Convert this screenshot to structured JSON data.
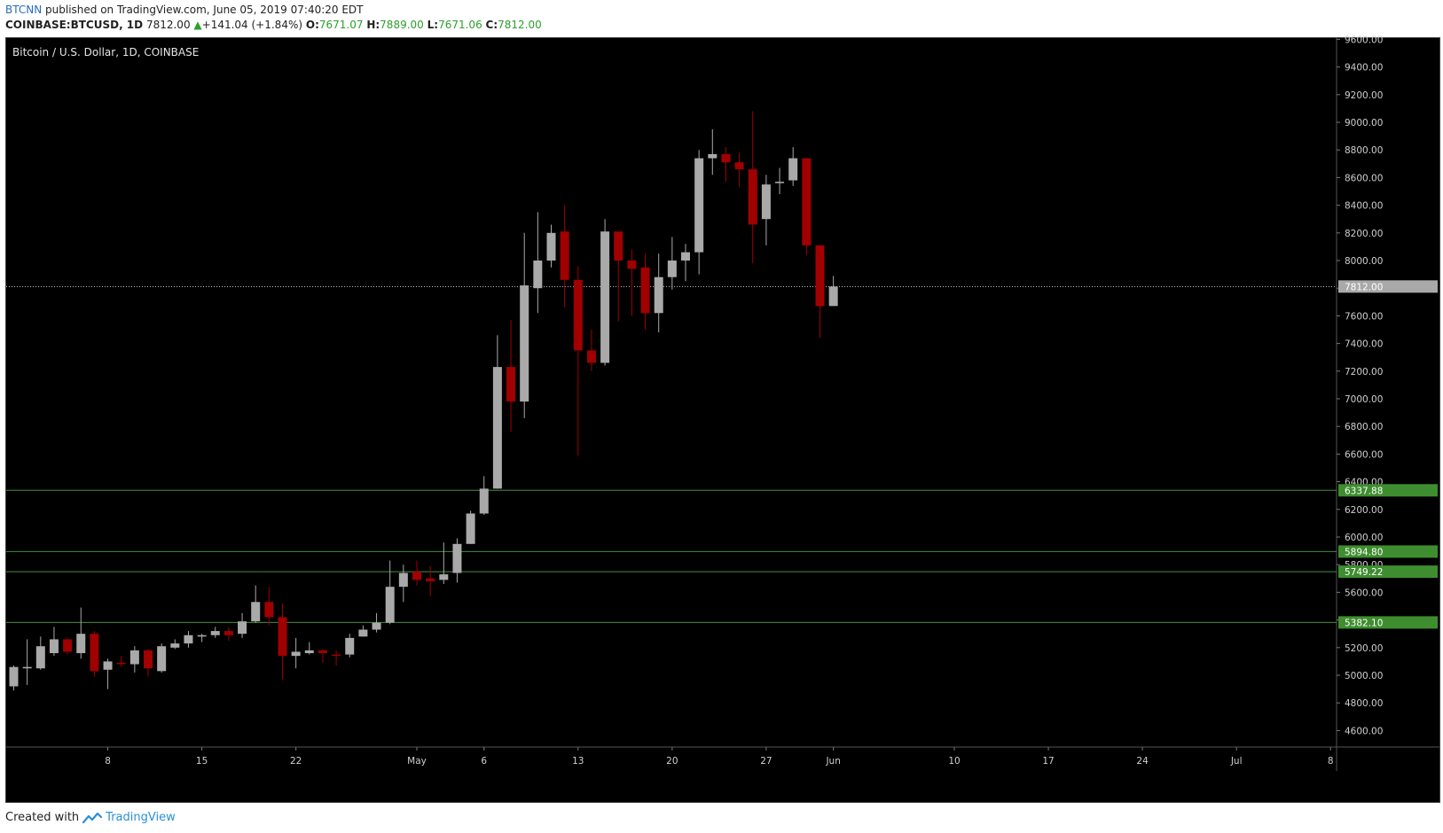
{
  "header": {
    "author": "BTCNN",
    "published_text": " published on TradingView.com, June 05, 2019 07:40:20 EDT",
    "symbol": "COINBASE:BTCUSD, 1D",
    "last": "7812.00",
    "change_arrow": "▲",
    "change": "+141.04 (+1.84%)",
    "o_label": "O:",
    "o": "7671.07",
    "h_label": "H:",
    "h": "7889.00",
    "l_label": "L:",
    "l": "7671.06",
    "c_label": "C:",
    "c": "7812.00"
  },
  "footer": {
    "created_with": "Created with",
    "brand": "TradingView"
  },
  "colors": {
    "up": "#a9a9a9",
    "down": "#a10000",
    "background": "#000000",
    "support_line": "#3f8f3f",
    "support_label": "#3e8e2f"
  },
  "chart_data": {
    "type": "candlestick",
    "title": "Bitcoin / U.S. Dollar, 1D, COINBASE",
    "y_ticks": [
      4600,
      4800,
      5000,
      5200,
      5400,
      5600,
      5800,
      6000,
      6200,
      6400,
      6600,
      6800,
      7000,
      7200,
      7400,
      7600,
      7800,
      8000,
      8200,
      8400,
      8600,
      8800,
      9000,
      9200,
      9400,
      9600
    ],
    "x_labels": [
      {
        "label": "8",
        "day": 7
      },
      {
        "label": "15",
        "day": 14
      },
      {
        "label": "22",
        "day": 21
      },
      {
        "label": "May",
        "day": 30
      },
      {
        "label": "6",
        "day": 35
      },
      {
        "label": "13",
        "day": 42
      },
      {
        "label": "20",
        "day": 49
      },
      {
        "label": "27",
        "day": 56
      },
      {
        "label": "Jun",
        "day": 61
      },
      {
        "label": "10",
        "day": 70
      },
      {
        "label": "17",
        "day": 77
      },
      {
        "label": "24",
        "day": 84
      },
      {
        "label": "Jul",
        "day": 91
      },
      {
        "label": "8",
        "day": 98
      }
    ],
    "last_price": {
      "value": 7812.0,
      "label": "7812.00"
    },
    "support_levels": [
      {
        "value": 6337.88,
        "label": "6337.88"
      },
      {
        "value": 5894.8,
        "label": "5894.80"
      },
      {
        "value": 5749.22,
        "label": "5749.22"
      },
      {
        "value": 5382.1,
        "label": "5382.10"
      }
    ],
    "candles": [
      [
        4920,
        5060,
        4890,
        5070
      ],
      [
        5050,
        5060,
        4930,
        5260
      ],
      [
        5050,
        5210,
        5040,
        5280
      ],
      [
        5160,
        5260,
        5140,
        5350
      ],
      [
        5260,
        5170,
        5150,
        5270
      ],
      [
        5160,
        5300,
        5120,
        5490
      ],
      [
        5300,
        5030,
        4990,
        5320
      ],
      [
        5040,
        5100,
        4900,
        5120
      ],
      [
        5090,
        5080,
        5060,
        5140
      ],
      [
        5080,
        5180,
        5020,
        5210
      ],
      [
        5180,
        5050,
        4990,
        5190
      ],
      [
        5030,
        5210,
        5020,
        5230
      ],
      [
        5200,
        5230,
        5190,
        5260
      ],
      [
        5230,
        5290,
        5200,
        5320
      ],
      [
        5280,
        5290,
        5240,
        5300
      ],
      [
        5290,
        5320,
        5270,
        5350
      ],
      [
        5320,
        5290,
        5250,
        5350
      ],
      [
        5300,
        5390,
        5270,
        5450
      ],
      [
        5390,
        5530,
        5380,
        5650
      ],
      [
        5530,
        5420,
        5360,
        5640
      ],
      [
        5420,
        5140,
        4970,
        5520
      ],
      [
        5140,
        5170,
        5050,
        5270
      ],
      [
        5160,
        5180,
        5150,
        5240
      ],
      [
        5180,
        5160,
        5090,
        5190
      ],
      [
        5150,
        5140,
        5070,
        5180
      ],
      [
        5150,
        5270,
        5130,
        5300
      ],
      [
        5280,
        5330,
        5280,
        5360
      ],
      [
        5330,
        5380,
        5310,
        5450
      ],
      [
        5380,
        5640,
        5370,
        5830
      ],
      [
        5640,
        5740,
        5530,
        5800
      ],
      [
        5750,
        5690,
        5650,
        5830
      ],
      [
        5700,
        5680,
        5570,
        5790
      ],
      [
        5690,
        5730,
        5660,
        5960
      ],
      [
        5740,
        5950,
        5670,
        5990
      ],
      [
        5950,
        6170,
        5950,
        6190
      ],
      [
        6170,
        6350,
        6160,
        6440
      ],
      [
        6350,
        7230,
        6350,
        7460
      ],
      [
        7230,
        6980,
        6760,
        7570
      ],
      [
        6980,
        7820,
        6860,
        8200
      ],
      [
        7800,
        8000,
        7620,
        8350
      ],
      [
        8000,
        8200,
        7950,
        8260
      ],
      [
        8210,
        7860,
        7660,
        8400
      ],
      [
        7860,
        7350,
        6590,
        7960
      ],
      [
        7350,
        7260,
        7200,
        7500
      ],
      [
        7260,
        8210,
        7240,
        8300
      ],
      [
        8210,
        8000,
        7560,
        8210
      ],
      [
        8000,
        7940,
        7600,
        8080
      ],
      [
        7950,
        7620,
        7500,
        8050
      ],
      [
        7620,
        7880,
        7480,
        8050
      ],
      [
        7880,
        8000,
        7790,
        8170
      ],
      [
        8000,
        8060,
        7850,
        8120
      ],
      [
        8060,
        8740,
        7900,
        8800
      ],
      [
        8740,
        8770,
        8620,
        8950
      ],
      [
        8770,
        8710,
        8570,
        8820
      ],
      [
        8710,
        8660,
        8530,
        8780
      ],
      [
        8660,
        8260,
        7980,
        9080
      ],
      [
        8300,
        8550,
        8110,
        8620
      ],
      [
        8560,
        8570,
        8480,
        8670
      ],
      [
        8580,
        8740,
        8540,
        8820
      ],
      [
        8740,
        8110,
        8040,
        8740
      ],
      [
        8110,
        7670,
        7440,
        8110
      ],
      [
        7671.07,
        7812,
        7671.06,
        7889
      ]
    ]
  }
}
